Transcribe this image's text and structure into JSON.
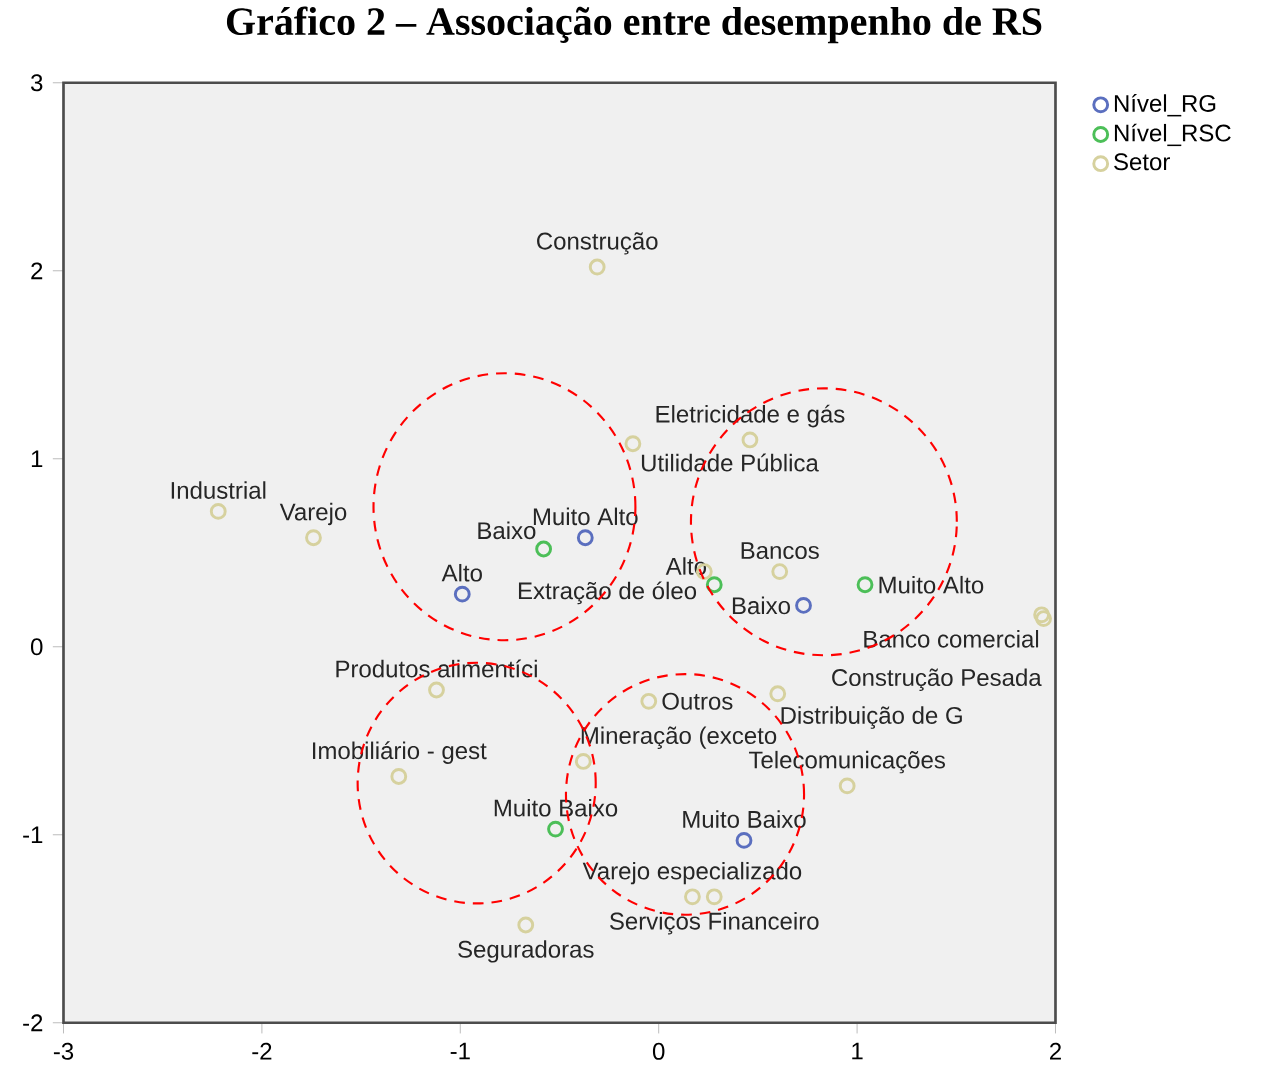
{
  "chart_data": {
    "type": "scatter",
    "title": "Gráfico 2 – Associação entre desempenho de RS",
    "xlim": [
      -3,
      2
    ],
    "ylim": [
      -2,
      3
    ],
    "xticks": [
      -3,
      -2,
      -1,
      0,
      1,
      2
    ],
    "yticks": [
      -2,
      -1,
      0,
      1,
      2,
      3
    ],
    "legend": "top right",
    "marker": "circle",
    "series": [
      {
        "name": "Nível_RG",
        "color": "#5b6fbf",
        "x": [
          -0.37,
          -0.99,
          0.73,
          0.43
        ],
        "values": [
          0.58,
          0.28,
          0.22,
          -1.03
        ]
      },
      {
        "name": "Nível_RSC",
        "color": "#4cbf58",
        "x": [
          -0.58,
          0.28,
          1.04,
          -0.52
        ],
        "values": [
          0.52,
          0.33,
          0.33,
          -0.97
        ]
      },
      {
        "name": "Setor",
        "color": "#d6d19e",
        "x": [
          -0.31,
          -2.22,
          -1.74,
          -0.13,
          0.46,
          0.23,
          0.61,
          1.93,
          1.94,
          -1.12,
          -1.31,
          -0.05,
          -0.38,
          0.6,
          0.95,
          0.17,
          0.28,
          -0.67
        ],
        "values": [
          2.02,
          0.72,
          0.58,
          1.08,
          1.1,
          0.4,
          0.4,
          0.17,
          0.15,
          -0.23,
          -0.69,
          -0.29,
          -0.61,
          -0.25,
          -0.74,
          -1.33,
          -1.33,
          -1.48
        ]
      }
    ],
    "annotations": [
      {
        "text": "Muito Alto",
        "x": -0.37,
        "y": 0.58
      },
      {
        "text": "Alto",
        "x": -0.99,
        "y": 0.28
      },
      {
        "text": "Baixo",
        "x": 0.73,
        "y": 0.22
      },
      {
        "text": "Muito Baixo",
        "x": 0.43,
        "y": -1.03
      },
      {
        "text": "Baixo",
        "x": -0.58,
        "y": 0.52
      },
      {
        "text": "Alto",
        "x": 0.28,
        "y": 0.33
      },
      {
        "text": "Muito Alto",
        "x": 1.04,
        "y": 0.33
      },
      {
        "text": "Muito Baixo",
        "x": -0.52,
        "y": -0.97
      },
      {
        "text": "Construção",
        "x": -0.31,
        "y": 2.02
      },
      {
        "text": "Industrial",
        "x": -2.22,
        "y": 0.72
      },
      {
        "text": "Varejo",
        "x": -1.74,
        "y": 0.58
      },
      {
        "text": "Utilidade Pública",
        "x": -0.13,
        "y": 1.08
      },
      {
        "text": "Eletricidade e gás",
        "x": 0.46,
        "y": 1.1
      },
      {
        "text": "Extração de óleo",
        "x": 0.23,
        "y": 0.4
      },
      {
        "text": "Bancos",
        "x": 0.61,
        "y": 0.4
      },
      {
        "text": "Banco comercial",
        "x": 1.93,
        "y": 0.17
      },
      {
        "text": "Construção Pesada",
        "x": 1.94,
        "y": 0.15
      },
      {
        "text": "Produtos alimentíci",
        "x": -1.12,
        "y": -0.23
      },
      {
        "text": "Imobiliário - gest",
        "x": -1.31,
        "y": -0.69
      },
      {
        "text": "Outros",
        "x": -0.05,
        "y": -0.29
      },
      {
        "text": "Mineração (exceto",
        "x": -0.38,
        "y": -0.61
      },
      {
        "text": "Distribuição de G",
        "x": 0.6,
        "y": -0.25
      },
      {
        "text": "Telecomunicações",
        "x": 0.95,
        "y": -0.74
      },
      {
        "text": "Varejo especializado",
        "x": 0.17,
        "y": -1.33
      },
      {
        "text": "Serviços Financeiro",
        "x": 0.28,
        "y": -1.33
      },
      {
        "text": "Seguradoras",
        "x": -0.67,
        "y": -1.48
      }
    ]
  }
}
